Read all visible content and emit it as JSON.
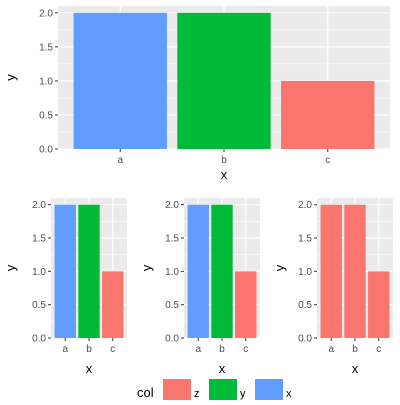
{
  "colors": {
    "panel_bg": "#ebebeb",
    "grid": "#ffffff",
    "tick_text": "#4d4d4d",
    "x": "#619cff",
    "y": "#00ba38",
    "z": "#f8766d"
  },
  "chart_data": [
    {
      "type": "bar",
      "categories": [
        "a",
        "b",
        "c"
      ],
      "values": [
        2,
        2,
        1
      ],
      "fills": [
        "x",
        "y",
        "z"
      ],
      "ylim": [
        0,
        2.1
      ],
      "yticks": [
        "0.0",
        "0.5",
        "1.0",
        "1.5",
        "2.0"
      ],
      "xlabel": "x",
      "ylabel": "y",
      "grid": true
    },
    {
      "type": "bar",
      "categories": [
        "a",
        "b",
        "c"
      ],
      "values": [
        2,
        2,
        1
      ],
      "fills": [
        "x",
        "y",
        "z"
      ],
      "ylim": [
        0,
        2.1
      ],
      "yticks": [
        "0.0",
        "0.5",
        "1.0",
        "1.5",
        "2.0"
      ],
      "xlabel": "x",
      "ylabel": "y",
      "grid": true
    },
    {
      "type": "bar",
      "categories": [
        "a",
        "b",
        "c"
      ],
      "values": [
        2,
        2,
        1
      ],
      "fills": [
        "x",
        "y",
        "z"
      ],
      "ylim": [
        0,
        2.1
      ],
      "yticks": [
        "0.0",
        "0.5",
        "1.0",
        "1.5",
        "2.0"
      ],
      "xlabel": "x",
      "ylabel": "y",
      "grid": true
    },
    {
      "type": "bar",
      "categories": [
        "a",
        "b",
        "c"
      ],
      "values": [
        2,
        2,
        1
      ],
      "fills": [
        "z",
        "z",
        "z"
      ],
      "ylim": [
        0,
        2.1
      ],
      "yticks": [
        "0.0",
        "0.5",
        "1.0",
        "1.5",
        "2.0"
      ],
      "xlabel": "x",
      "ylabel": "y",
      "grid": true
    }
  ],
  "legend": {
    "title": "col",
    "entries": [
      {
        "label": "z",
        "color": "z"
      },
      {
        "label": "y",
        "color": "y"
      },
      {
        "label": "x",
        "color": "x"
      }
    ]
  }
}
